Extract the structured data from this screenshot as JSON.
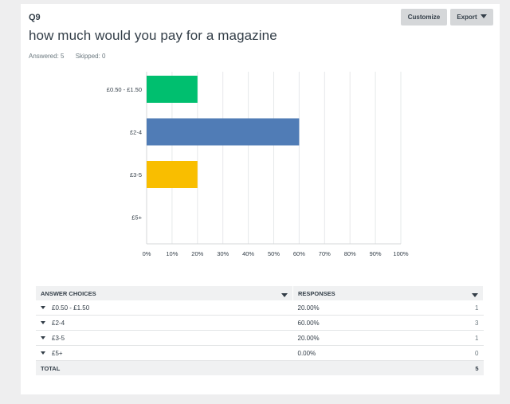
{
  "question": {
    "number": "Q9",
    "title": "how much would you pay for a magazine",
    "answered_label": "Answered: 5",
    "skipped_label": "Skipped: 0"
  },
  "buttons": {
    "customize": "Customize",
    "export": "Export"
  },
  "chart_data": {
    "type": "bar",
    "orientation": "horizontal",
    "categories": [
      "£0.50 - £1.50",
      "£2-4",
      "£3-5",
      "£5+"
    ],
    "values": [
      20,
      60,
      20,
      0
    ],
    "colors": [
      "#00bf6f",
      "#507cb6",
      "#f9be00",
      "#6bc8cd"
    ],
    "xlim": [
      0,
      100
    ],
    "xticks": [
      "0%",
      "10%",
      "20%",
      "30%",
      "40%",
      "50%",
      "60%",
      "70%",
      "80%",
      "90%",
      "100%"
    ],
    "grid": true
  },
  "table": {
    "headers": {
      "choices": "ANSWER CHOICES",
      "responses": "RESPONSES"
    },
    "rows": [
      {
        "choice": "£0.50 - £1.50",
        "percent": "20.00%",
        "count": "1"
      },
      {
        "choice": "£2-4",
        "percent": "60.00%",
        "count": "3"
      },
      {
        "choice": "£3-5",
        "percent": "20.00%",
        "count": "1"
      },
      {
        "choice": "£5+",
        "percent": "0.00%",
        "count": "0"
      }
    ],
    "total_label": "TOTAL",
    "total_value": "5"
  }
}
